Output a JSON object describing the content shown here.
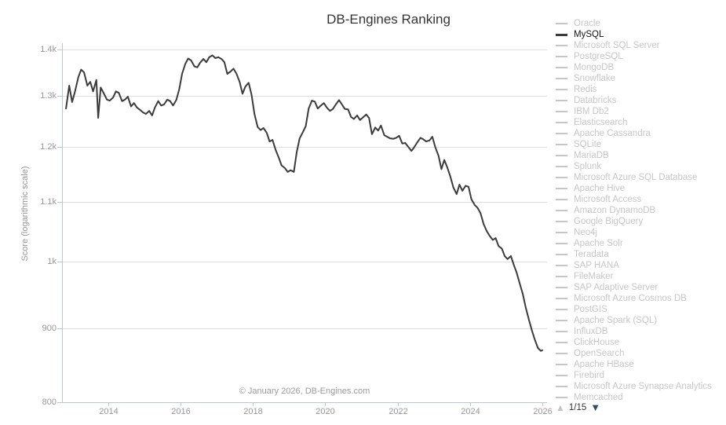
{
  "title": "DB-Engines Ranking",
  "watermark": "© January 2026, DB-Engines.com",
  "y_axis": {
    "label": "Score (logarithmic scale)",
    "ticks": [
      {
        "label": "1.4k",
        "value": 1400
      },
      {
        "label": "1.3k",
        "value": 1300
      },
      {
        "label": "1.2k",
        "value": 1200
      },
      {
        "label": "1.1k",
        "value": 1100
      },
      {
        "label": "1k",
        "value": 1000
      },
      {
        "label": "900",
        "value": 900
      },
      {
        "label": "800",
        "value": 800
      }
    ]
  },
  "x_axis": {
    "ticks": [
      2014,
      2016,
      2018,
      2020,
      2022,
      2024,
      2026
    ]
  },
  "legend": {
    "items": [
      {
        "label": "Oracle",
        "selected": false
      },
      {
        "label": "MySQL",
        "selected": true
      },
      {
        "label": "Microsoft SQL Server",
        "selected": false
      },
      {
        "label": "PostgreSQL",
        "selected": false
      },
      {
        "label": "MongoDB",
        "selected": false
      },
      {
        "label": "Snowflake",
        "selected": false
      },
      {
        "label": "Redis",
        "selected": false
      },
      {
        "label": "Databricks",
        "selected": false
      },
      {
        "label": "IBM Db2",
        "selected": false
      },
      {
        "label": "Elasticsearch",
        "selected": false
      },
      {
        "label": "Apache Cassandra",
        "selected": false
      },
      {
        "label": "SQLite",
        "selected": false
      },
      {
        "label": "MariaDB",
        "selected": false
      },
      {
        "label": "Splunk",
        "selected": false
      },
      {
        "label": "Microsoft Azure SQL Database",
        "selected": false
      },
      {
        "label": "Apache Hive",
        "selected": false
      },
      {
        "label": "Microsoft Access",
        "selected": false
      },
      {
        "label": "Amazon DynamoDB",
        "selected": false
      },
      {
        "label": "Google BigQuery",
        "selected": false
      },
      {
        "label": "Neo4j",
        "selected": false
      },
      {
        "label": "Apache Solr",
        "selected": false
      },
      {
        "label": "Teradata",
        "selected": false
      },
      {
        "label": "SAP HANA",
        "selected": false
      },
      {
        "label": "FileMaker",
        "selected": false
      },
      {
        "label": "SAP Adaptive Server",
        "selected": false
      },
      {
        "label": "Microsoft Azure Cosmos DB",
        "selected": false
      },
      {
        "label": "PostGIS",
        "selected": false
      },
      {
        "label": "Apache Spark (SQL)",
        "selected": false
      },
      {
        "label": "InfluxDB",
        "selected": false
      },
      {
        "label": "ClickHouse",
        "selected": false
      },
      {
        "label": "OpenSearch",
        "selected": false
      },
      {
        "label": "Apache HBase",
        "selected": false
      },
      {
        "label": "Firebird",
        "selected": false
      },
      {
        "label": "Microsoft Azure Synapse Analytics",
        "selected": false
      },
      {
        "label": "Memcached",
        "selected": false
      }
    ],
    "pagination": {
      "up_icon": "▲",
      "current_page": "1/15",
      "down_icon": "▼"
    }
  },
  "colors": {
    "background": "#ffffff",
    "title_text": "#333333",
    "tick_text": "#979797",
    "watermark_text": "#9a9a9a",
    "gridline": "#dcdfe2",
    "axis_line": "#b7c8d6",
    "series_line": "#3b3b3b",
    "legend_text": "#c6c6c6",
    "legend_selected_text": "#111111",
    "pagination_up": "#c4c4c4",
    "pagination_down": "#2d4b6d"
  },
  "chart_data": {
    "type": "line",
    "title": "DB-Engines Ranking",
    "xlabel": "",
    "ylabel": "Score (logarithmic scale)",
    "y_scale": "log",
    "ylim": [
      800,
      1450
    ],
    "xlim": [
      2012.7,
      2026.15
    ],
    "grid": true,
    "legend_position": "right",
    "series": [
      {
        "name": "MySQL",
        "color": "#3b3b3b",
        "points": [
          [
            2012.83,
            1275
          ],
          [
            2012.92,
            1322
          ],
          [
            2013.0,
            1288
          ],
          [
            2013.08,
            1310
          ],
          [
            2013.17,
            1340
          ],
          [
            2013.25,
            1356
          ],
          [
            2013.33,
            1350
          ],
          [
            2013.42,
            1322
          ],
          [
            2013.5,
            1330
          ],
          [
            2013.58,
            1310
          ],
          [
            2013.67,
            1334
          ],
          [
            2013.72,
            1256
          ],
          [
            2013.79,
            1318
          ],
          [
            2013.88,
            1305
          ],
          [
            2013.96,
            1293
          ],
          [
            2014.04,
            1291
          ],
          [
            2014.13,
            1297
          ],
          [
            2014.21,
            1310
          ],
          [
            2014.29,
            1307
          ],
          [
            2014.38,
            1290
          ],
          [
            2014.46,
            1293
          ],
          [
            2014.54,
            1299
          ],
          [
            2014.63,
            1279
          ],
          [
            2014.71,
            1286
          ],
          [
            2014.79,
            1277
          ],
          [
            2014.88,
            1272
          ],
          [
            2014.96,
            1267
          ],
          [
            2015.04,
            1264
          ],
          [
            2015.13,
            1270
          ],
          [
            2015.21,
            1261
          ],
          [
            2015.29,
            1277
          ],
          [
            2015.38,
            1290
          ],
          [
            2015.46,
            1281
          ],
          [
            2015.54,
            1283
          ],
          [
            2015.63,
            1293
          ],
          [
            2015.71,
            1290
          ],
          [
            2015.79,
            1281
          ],
          [
            2015.88,
            1292
          ],
          [
            2015.96,
            1314
          ],
          [
            2016.04,
            1347
          ],
          [
            2016.13,
            1369
          ],
          [
            2016.21,
            1380
          ],
          [
            2016.29,
            1376
          ],
          [
            2016.38,
            1363
          ],
          [
            2016.46,
            1361
          ],
          [
            2016.54,
            1371
          ],
          [
            2016.63,
            1379
          ],
          [
            2016.71,
            1372
          ],
          [
            2016.79,
            1383
          ],
          [
            2016.88,
            1387
          ],
          [
            2016.96,
            1381
          ],
          [
            2017.04,
            1383
          ],
          [
            2017.13,
            1379
          ],
          [
            2017.21,
            1372
          ],
          [
            2017.29,
            1347
          ],
          [
            2017.38,
            1352
          ],
          [
            2017.46,
            1358
          ],
          [
            2017.54,
            1348
          ],
          [
            2017.63,
            1330
          ],
          [
            2017.71,
            1305
          ],
          [
            2017.79,
            1320
          ],
          [
            2017.88,
            1328
          ],
          [
            2017.96,
            1303
          ],
          [
            2018.04,
            1264
          ],
          [
            2018.13,
            1238
          ],
          [
            2018.21,
            1232
          ],
          [
            2018.29,
            1236
          ],
          [
            2018.38,
            1227
          ],
          [
            2018.46,
            1210
          ],
          [
            2018.54,
            1213
          ],
          [
            2018.63,
            1193
          ],
          [
            2018.71,
            1180
          ],
          [
            2018.79,
            1165
          ],
          [
            2018.88,
            1160
          ],
          [
            2018.96,
            1153
          ],
          [
            2019.04,
            1156
          ],
          [
            2019.13,
            1153
          ],
          [
            2019.21,
            1190
          ],
          [
            2019.29,
            1216
          ],
          [
            2019.38,
            1228
          ],
          [
            2019.46,
            1240
          ],
          [
            2019.54,
            1275
          ],
          [
            2019.63,
            1291
          ],
          [
            2019.71,
            1289
          ],
          [
            2019.79,
            1275
          ],
          [
            2019.88,
            1281
          ],
          [
            2019.96,
            1286
          ],
          [
            2020.04,
            1277
          ],
          [
            2020.13,
            1270
          ],
          [
            2020.21,
            1274
          ],
          [
            2020.29,
            1283
          ],
          [
            2020.38,
            1292
          ],
          [
            2020.46,
            1283
          ],
          [
            2020.54,
            1274
          ],
          [
            2020.63,
            1273
          ],
          [
            2020.71,
            1258
          ],
          [
            2020.79,
            1254
          ],
          [
            2020.88,
            1261
          ],
          [
            2020.96,
            1252
          ],
          [
            2021.04,
            1257
          ],
          [
            2021.13,
            1263
          ],
          [
            2021.21,
            1256
          ],
          [
            2021.29,
            1224
          ],
          [
            2021.38,
            1237
          ],
          [
            2021.46,
            1231
          ],
          [
            2021.54,
            1241
          ],
          [
            2021.63,
            1222
          ],
          [
            2021.71,
            1219
          ],
          [
            2021.79,
            1216
          ],
          [
            2021.88,
            1215
          ],
          [
            2021.96,
            1217
          ],
          [
            2022.04,
            1221
          ],
          [
            2022.13,
            1206
          ],
          [
            2022.21,
            1207
          ],
          [
            2022.29,
            1200
          ],
          [
            2022.38,
            1192
          ],
          [
            2022.46,
            1199
          ],
          [
            2022.54,
            1208
          ],
          [
            2022.63,
            1217
          ],
          [
            2022.71,
            1214
          ],
          [
            2022.79,
            1210
          ],
          [
            2022.88,
            1212
          ],
          [
            2022.96,
            1219
          ],
          [
            2023.04,
            1199
          ],
          [
            2023.13,
            1183
          ],
          [
            2023.21,
            1158
          ],
          [
            2023.29,
            1175
          ],
          [
            2023.38,
            1160
          ],
          [
            2023.46,
            1144
          ],
          [
            2023.54,
            1125
          ],
          [
            2023.63,
            1113
          ],
          [
            2023.71,
            1130
          ],
          [
            2023.79,
            1119
          ],
          [
            2023.88,
            1128
          ],
          [
            2023.96,
            1126
          ],
          [
            2024.04,
            1104
          ],
          [
            2024.13,
            1094
          ],
          [
            2024.21,
            1089
          ],
          [
            2024.29,
            1080
          ],
          [
            2024.38,
            1061
          ],
          [
            2024.46,
            1050
          ],
          [
            2024.54,
            1042
          ],
          [
            2024.63,
            1035
          ],
          [
            2024.71,
            1038
          ],
          [
            2024.79,
            1025
          ],
          [
            2024.88,
            1021
          ],
          [
            2024.96,
            1009
          ],
          [
            2025.04,
            1004
          ],
          [
            2025.13,
            1009
          ],
          [
            2025.21,
            995
          ],
          [
            2025.29,
            983
          ],
          [
            2025.38,
            965
          ],
          [
            2025.46,
            950
          ],
          [
            2025.54,
            930
          ],
          [
            2025.63,
            912
          ],
          [
            2025.71,
            897
          ],
          [
            2025.79,
            884
          ],
          [
            2025.88,
            872
          ],
          [
            2025.96,
            868
          ],
          [
            2026.0,
            869
          ]
        ]
      }
    ]
  }
}
